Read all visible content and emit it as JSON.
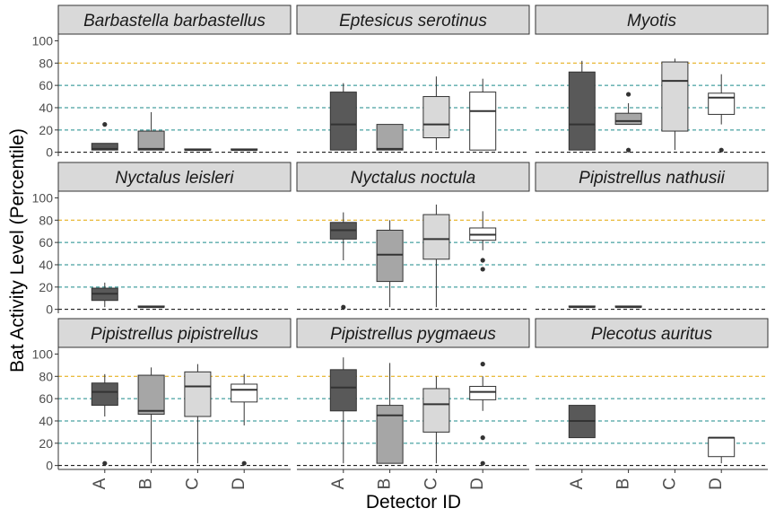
{
  "chart_data": {
    "type": "box",
    "facet_layout": "3x3 grid",
    "xlabel": "Detector ID",
    "ylabel": "Bat Activity Level (Percentile)",
    "categories": [
      "A",
      "B",
      "C",
      "D"
    ],
    "y_ticks": [
      0,
      20,
      40,
      60,
      80,
      100
    ],
    "ylim": [
      0,
      100
    ],
    "reference_lines": [
      {
        "y": 0,
        "color": "#000000"
      },
      {
        "y": 20,
        "color": "#1b8a8a"
      },
      {
        "y": 40,
        "color": "#1b8a8a"
      },
      {
        "y": 60,
        "color": "#1b8a8a"
      },
      {
        "y": 80,
        "color": "#e3a600"
      }
    ],
    "fill_colors": {
      "A": "#595959",
      "B": "#a6a6a6",
      "C": "#d9d9d9",
      "D": "#ffffff"
    },
    "panels": [
      {
        "title": "Barbastella barbastellus",
        "boxes": [
          {
            "cat": "A",
            "q1": 2,
            "median": 3,
            "q3": 8,
            "lo": 2,
            "hi": 8,
            "outliers": [
              25
            ]
          },
          {
            "cat": "B",
            "q1": 2,
            "median": 3,
            "q3": 19,
            "lo": 2,
            "hi": 36,
            "outliers": []
          },
          {
            "cat": "C",
            "q1": 2,
            "median": 2,
            "q3": 3,
            "lo": 2,
            "hi": 3,
            "outliers": []
          },
          {
            "cat": "D",
            "q1": 2,
            "median": 2,
            "q3": 3,
            "lo": 2,
            "hi": 3,
            "outliers": []
          }
        ]
      },
      {
        "title": "Eptesicus serotinus",
        "boxes": [
          {
            "cat": "A",
            "q1": 2,
            "median": 25,
            "q3": 54,
            "lo": 2,
            "hi": 62,
            "outliers": []
          },
          {
            "cat": "B",
            "q1": 2,
            "median": 3,
            "q3": 25,
            "lo": 2,
            "hi": 25,
            "outliers": []
          },
          {
            "cat": "C",
            "q1": 13,
            "median": 25,
            "q3": 50,
            "lo": 2,
            "hi": 68,
            "outliers": []
          },
          {
            "cat": "D",
            "q1": 2,
            "median": 37,
            "q3": 54,
            "lo": 2,
            "hi": 66,
            "outliers": []
          }
        ]
      },
      {
        "title": "Myotis",
        "boxes": [
          {
            "cat": "A",
            "q1": 2,
            "median": 25,
            "q3": 72,
            "lo": 2,
            "hi": 82,
            "outliers": []
          },
          {
            "cat": "B",
            "q1": 25,
            "median": 28,
            "q3": 35,
            "lo": 25,
            "hi": 44,
            "outliers": [
              52,
              2
            ]
          },
          {
            "cat": "C",
            "q1": 19,
            "median": 64,
            "q3": 81,
            "lo": 2,
            "hi": 84,
            "outliers": []
          },
          {
            "cat": "D",
            "q1": 34,
            "median": 49,
            "q3": 53,
            "lo": 25,
            "hi": 70,
            "outliers": [
              2
            ]
          }
        ]
      },
      {
        "title": "Nyctalus leisleri",
        "boxes": [
          {
            "cat": "A",
            "q1": 8,
            "median": 14,
            "q3": 19,
            "lo": 2,
            "hi": 24,
            "outliers": []
          },
          {
            "cat": "B",
            "q1": 2,
            "median": 2,
            "q3": 3,
            "lo": 2,
            "hi": 3,
            "outliers": []
          }
        ]
      },
      {
        "title": "Nyctalus noctula",
        "boxes": [
          {
            "cat": "A",
            "q1": 63,
            "median": 71,
            "q3": 78,
            "lo": 44,
            "hi": 87,
            "outliers": [
              2
            ]
          },
          {
            "cat": "B",
            "q1": 25,
            "median": 49,
            "q3": 71,
            "lo": 2,
            "hi": 80,
            "outliers": []
          },
          {
            "cat": "C",
            "q1": 45,
            "median": 63,
            "q3": 85,
            "lo": 2,
            "hi": 94,
            "outliers": []
          },
          {
            "cat": "D",
            "q1": 62,
            "median": 67,
            "q3": 73,
            "lo": 53,
            "hi": 88,
            "outliers": [
              44,
              36
            ]
          }
        ]
      },
      {
        "title": "Pipistrellus nathusii",
        "boxes": [
          {
            "cat": "A",
            "q1": 2,
            "median": 2,
            "q3": 3,
            "lo": 2,
            "hi": 3,
            "outliers": []
          },
          {
            "cat": "B",
            "q1": 2,
            "median": 2,
            "q3": 3,
            "lo": 2,
            "hi": 3,
            "outliers": []
          }
        ]
      },
      {
        "title": "Pipistrellus pipistrellus",
        "boxes": [
          {
            "cat": "A",
            "q1": 54,
            "median": 66,
            "q3": 74,
            "lo": 44,
            "hi": 82,
            "outliers": [
              2
            ]
          },
          {
            "cat": "B",
            "q1": 46,
            "median": 49,
            "q3": 81,
            "lo": 2,
            "hi": 88,
            "outliers": []
          },
          {
            "cat": "C",
            "q1": 44,
            "median": 71,
            "q3": 84,
            "lo": 2,
            "hi": 91,
            "outliers": []
          },
          {
            "cat": "D",
            "q1": 57,
            "median": 68,
            "q3": 73,
            "lo": 36,
            "hi": 82,
            "outliers": [
              2
            ]
          }
        ]
      },
      {
        "title": "Pipistrellus pygmaeus",
        "boxes": [
          {
            "cat": "A",
            "q1": 49,
            "median": 70,
            "q3": 86,
            "lo": 2,
            "hi": 97,
            "outliers": []
          },
          {
            "cat": "B",
            "q1": 2,
            "median": 45,
            "q3": 54,
            "lo": 2,
            "hi": 92,
            "outliers": []
          },
          {
            "cat": "C",
            "q1": 30,
            "median": 55,
            "q3": 69,
            "lo": 2,
            "hi": 80,
            "outliers": []
          },
          {
            "cat": "D",
            "q1": 59,
            "median": 66,
            "q3": 71,
            "lo": 49,
            "hi": 80,
            "outliers": [
              91,
              25,
              2
            ]
          }
        ]
      },
      {
        "title": "Plecotus auritus",
        "boxes": [
          {
            "cat": "A",
            "q1": 25,
            "median": 40,
            "q3": 54,
            "lo": 25,
            "hi": 54,
            "outliers": []
          },
          {
            "cat": "D",
            "q1": 8,
            "median": 25,
            "q3": 25,
            "lo": 2,
            "hi": 25,
            "outliers": []
          }
        ]
      }
    ]
  }
}
